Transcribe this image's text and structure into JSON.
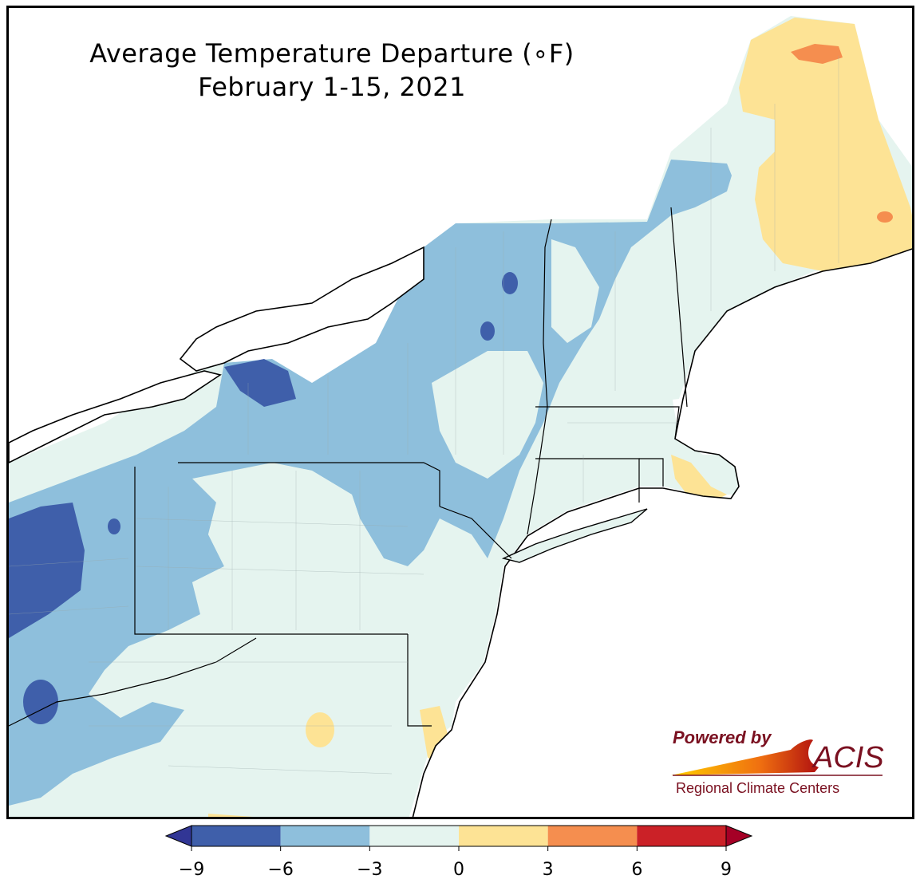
{
  "title": {
    "line1": "Average Temperature Departure (∘F)",
    "line2": "February 1-15, 2021"
  },
  "legend": {
    "ticks": [
      "−9",
      "−6",
      "−3",
      "0",
      "3",
      "6",
      "9"
    ],
    "bins": [
      {
        "range": [
          -9,
          -6
        ],
        "color": "#3f5faa"
      },
      {
        "range": [
          -6,
          -3
        ],
        "color": "#8ebfdc"
      },
      {
        "range": [
          -3,
          0
        ],
        "color": "#e5f4ef"
      },
      {
        "range": [
          0,
          3
        ],
        "color": "#fde395"
      },
      {
        "range": [
          3,
          6
        ],
        "color": "#f58e4f"
      },
      {
        "range": [
          6,
          9
        ],
        "color": "#cb2127"
      }
    ],
    "extend": "both",
    "under_color": "#313695",
    "over_color": "#a50026"
  },
  "logo": {
    "powered_by": "Powered by",
    "acis": "ACIS",
    "rcc": "Regional Climate Centers",
    "color": "#7a1020"
  }
}
